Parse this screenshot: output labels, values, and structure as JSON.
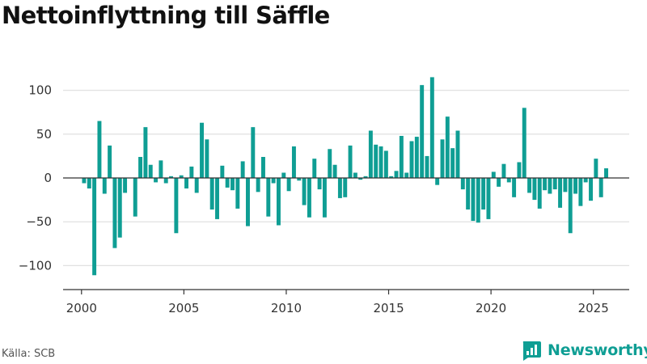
{
  "title": "Nettoinflyttning till Säffle",
  "source": "Källa: SCB",
  "brand": {
    "name": "Newsworthy",
    "icon": "newsworthy-logo-icon",
    "color": "#0f9e94"
  },
  "chart_data": {
    "type": "bar",
    "title": "Nettoinflyttning till Säffle",
    "xlabel": "",
    "ylabel": "",
    "bar_color": "#0f9e94",
    "grid": true,
    "xlim": [
      1999.1,
      2026.75
    ],
    "ylim": [
      -120,
      120
    ],
    "x_ticks": [
      {
        "value": 2000,
        "label": "2000"
      },
      {
        "value": 2005,
        "label": "2005"
      },
      {
        "value": 2010,
        "label": "2010"
      },
      {
        "value": 2015,
        "label": "2015"
      },
      {
        "value": 2020,
        "label": "2020"
      },
      {
        "value": 2025,
        "label": "2025"
      }
    ],
    "y_ticks": [
      {
        "value": 100,
        "label": "100"
      },
      {
        "value": 50,
        "label": "50"
      },
      {
        "value": 0,
        "label": "0"
      },
      {
        "value": -50,
        "label": "−50"
      },
      {
        "value": -100,
        "label": "−100"
      }
    ],
    "x_start": "2000 Q1",
    "frequency": "quarterly",
    "values": [
      -6,
      -12,
      -111,
      65,
      -18,
      37,
      -80,
      -68,
      -17,
      0,
      -44,
      24,
      58,
      15,
      -5,
      20,
      -6,
      2,
      -63,
      3,
      -12,
      13,
      -17,
      63,
      44,
      -36,
      -47,
      14,
      -11,
      -14,
      -35,
      19,
      -55,
      58,
      -16,
      24,
      -44,
      -6,
      -54,
      6,
      -15,
      36,
      -3,
      -31,
      -45,
      22,
      -13,
      -45,
      33,
      15,
      -23,
      -22,
      37,
      6,
      -2,
      2,
      54,
      38,
      36,
      31,
      2,
      8,
      48,
      6,
      42,
      47,
      106,
      25,
      115,
      -8,
      44,
      70,
      34,
      54,
      -13,
      -36,
      -49,
      -51,
      -36,
      -47,
      7,
      -10,
      16,
      -5,
      -22,
      18,
      80,
      -17,
      -25,
      -35,
      -14,
      -18,
      -13,
      -34,
      -16,
      -63,
      -18,
      -32,
      -5,
      -26,
      22,
      -22,
      11
    ]
  }
}
